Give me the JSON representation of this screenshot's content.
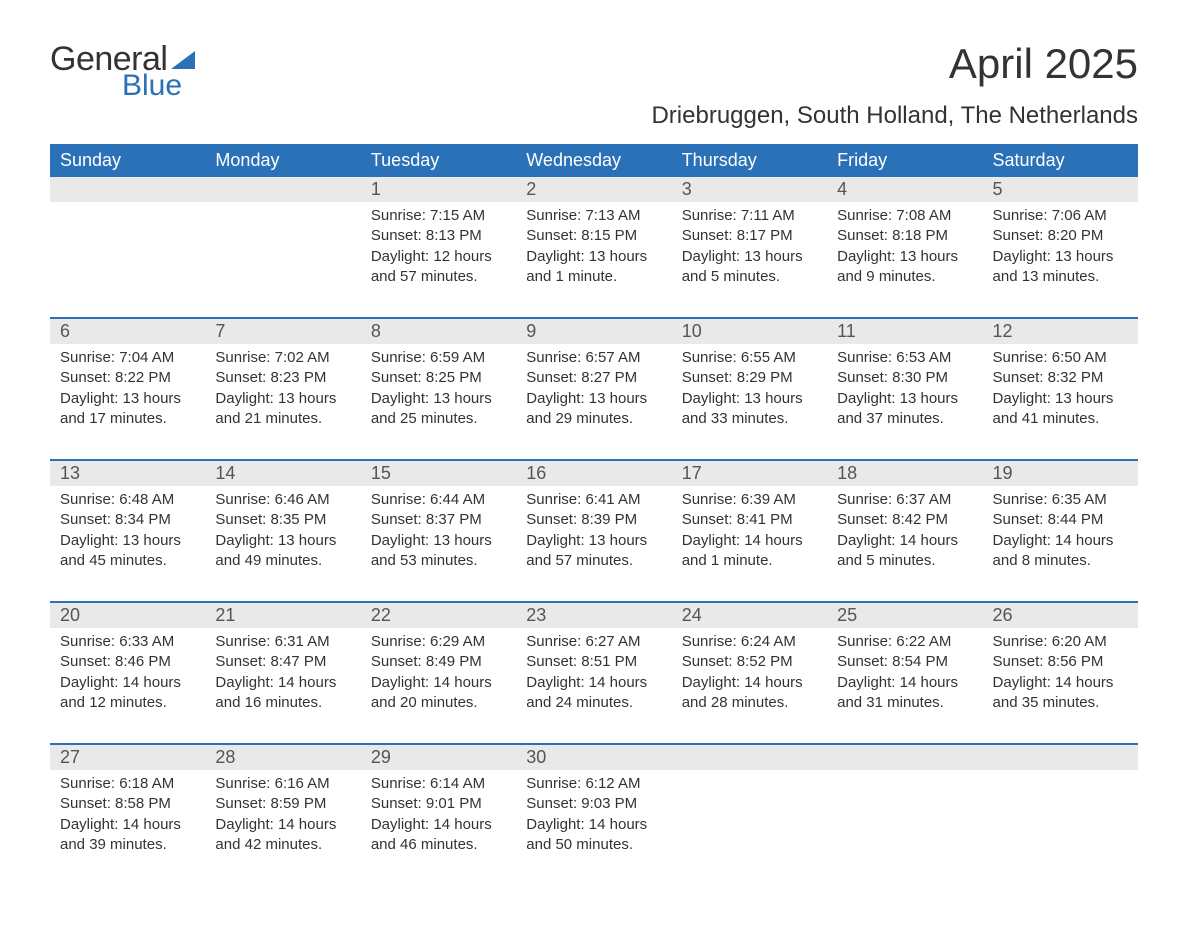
{
  "logo": {
    "part1": "General",
    "part2": "Blue"
  },
  "title": "April 2025",
  "location": "Driebruggen, South Holland, The Netherlands",
  "colors": {
    "header_bg": "#2a71b8",
    "header_fg": "#ffffff",
    "daynum_bg": "#e9e9e9",
    "text": "#333333",
    "page_bg": "#ffffff"
  },
  "day_headers": [
    "Sunday",
    "Monday",
    "Tuesday",
    "Wednesday",
    "Thursday",
    "Friday",
    "Saturday"
  ],
  "weeks": [
    [
      {},
      {},
      {
        "n": "1",
        "sunrise": "7:15 AM",
        "sunset": "8:13 PM",
        "daylight": "12 hours and 57 minutes."
      },
      {
        "n": "2",
        "sunrise": "7:13 AM",
        "sunset": "8:15 PM",
        "daylight": "13 hours and 1 minute."
      },
      {
        "n": "3",
        "sunrise": "7:11 AM",
        "sunset": "8:17 PM",
        "daylight": "13 hours and 5 minutes."
      },
      {
        "n": "4",
        "sunrise": "7:08 AM",
        "sunset": "8:18 PM",
        "daylight": "13 hours and 9 minutes."
      },
      {
        "n": "5",
        "sunrise": "7:06 AM",
        "sunset": "8:20 PM",
        "daylight": "13 hours and 13 minutes."
      }
    ],
    [
      {
        "n": "6",
        "sunrise": "7:04 AM",
        "sunset": "8:22 PM",
        "daylight": "13 hours and 17 minutes."
      },
      {
        "n": "7",
        "sunrise": "7:02 AM",
        "sunset": "8:23 PM",
        "daylight": "13 hours and 21 minutes."
      },
      {
        "n": "8",
        "sunrise": "6:59 AM",
        "sunset": "8:25 PM",
        "daylight": "13 hours and 25 minutes."
      },
      {
        "n": "9",
        "sunrise": "6:57 AM",
        "sunset": "8:27 PM",
        "daylight": "13 hours and 29 minutes."
      },
      {
        "n": "10",
        "sunrise": "6:55 AM",
        "sunset": "8:29 PM",
        "daylight": "13 hours and 33 minutes."
      },
      {
        "n": "11",
        "sunrise": "6:53 AM",
        "sunset": "8:30 PM",
        "daylight": "13 hours and 37 minutes."
      },
      {
        "n": "12",
        "sunrise": "6:50 AM",
        "sunset": "8:32 PM",
        "daylight": "13 hours and 41 minutes."
      }
    ],
    [
      {
        "n": "13",
        "sunrise": "6:48 AM",
        "sunset": "8:34 PM",
        "daylight": "13 hours and 45 minutes."
      },
      {
        "n": "14",
        "sunrise": "6:46 AM",
        "sunset": "8:35 PM",
        "daylight": "13 hours and 49 minutes."
      },
      {
        "n": "15",
        "sunrise": "6:44 AM",
        "sunset": "8:37 PM",
        "daylight": "13 hours and 53 minutes."
      },
      {
        "n": "16",
        "sunrise": "6:41 AM",
        "sunset": "8:39 PM",
        "daylight": "13 hours and 57 minutes."
      },
      {
        "n": "17",
        "sunrise": "6:39 AM",
        "sunset": "8:41 PM",
        "daylight": "14 hours and 1 minute."
      },
      {
        "n": "18",
        "sunrise": "6:37 AM",
        "sunset": "8:42 PM",
        "daylight": "14 hours and 5 minutes."
      },
      {
        "n": "19",
        "sunrise": "6:35 AM",
        "sunset": "8:44 PM",
        "daylight": "14 hours and 8 minutes."
      }
    ],
    [
      {
        "n": "20",
        "sunrise": "6:33 AM",
        "sunset": "8:46 PM",
        "daylight": "14 hours and 12 minutes."
      },
      {
        "n": "21",
        "sunrise": "6:31 AM",
        "sunset": "8:47 PM",
        "daylight": "14 hours and 16 minutes."
      },
      {
        "n": "22",
        "sunrise": "6:29 AM",
        "sunset": "8:49 PM",
        "daylight": "14 hours and 20 minutes."
      },
      {
        "n": "23",
        "sunrise": "6:27 AM",
        "sunset": "8:51 PM",
        "daylight": "14 hours and 24 minutes."
      },
      {
        "n": "24",
        "sunrise": "6:24 AM",
        "sunset": "8:52 PM",
        "daylight": "14 hours and 28 minutes."
      },
      {
        "n": "25",
        "sunrise": "6:22 AM",
        "sunset": "8:54 PM",
        "daylight": "14 hours and 31 minutes."
      },
      {
        "n": "26",
        "sunrise": "6:20 AM",
        "sunset": "8:56 PM",
        "daylight": "14 hours and 35 minutes."
      }
    ],
    [
      {
        "n": "27",
        "sunrise": "6:18 AM",
        "sunset": "8:58 PM",
        "daylight": "14 hours and 39 minutes."
      },
      {
        "n": "28",
        "sunrise": "6:16 AM",
        "sunset": "8:59 PM",
        "daylight": "14 hours and 42 minutes."
      },
      {
        "n": "29",
        "sunrise": "6:14 AM",
        "sunset": "9:01 PM",
        "daylight": "14 hours and 46 minutes."
      },
      {
        "n": "30",
        "sunrise": "6:12 AM",
        "sunset": "9:03 PM",
        "daylight": "14 hours and 50 minutes."
      },
      {},
      {},
      {}
    ]
  ],
  "labels": {
    "sunrise": "Sunrise: ",
    "sunset": "Sunset: ",
    "daylight": "Daylight: "
  }
}
